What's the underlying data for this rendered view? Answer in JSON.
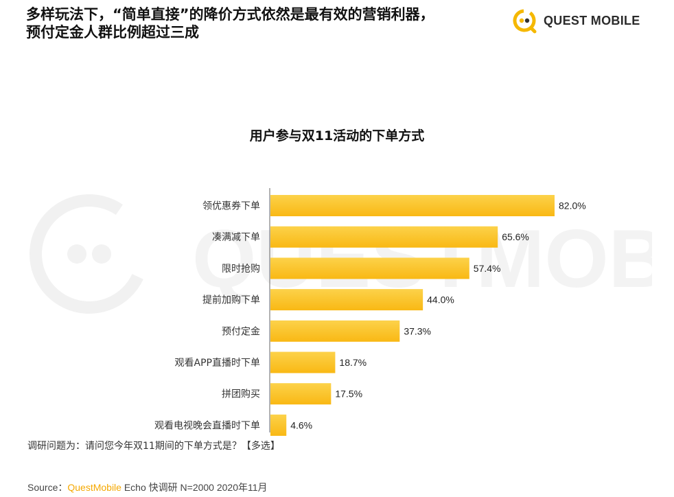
{
  "header": {
    "title_line1": "多样玩法下，“简单直接”的降价方式依然是最有效的营销利器，",
    "title_line2": "预付定金人群比例超过三成"
  },
  "logo": {
    "text": "QUEST MOBILE",
    "icon": "questmobile-logo-icon",
    "color": "#f5b800"
  },
  "watermark": {
    "text": "QUESTMOBILE"
  },
  "chart_data": {
    "type": "bar",
    "orientation": "horizontal",
    "title": "用户参与双11活动的下单方式",
    "categories": [
      "领优惠券下单",
      "凑满减下单",
      "限时抢购",
      "提前加购下单",
      "预付定金",
      "观看APP直播时下单",
      "拼团购买",
      "观看电视晚会直播时下单"
    ],
    "values": [
      82.0,
      65.6,
      57.4,
      44.0,
      37.3,
      18.7,
      17.5,
      4.6
    ],
    "value_labels": [
      "82.0%",
      "65.6%",
      "57.4%",
      "44.0%",
      "37.3%",
      "18.7%",
      "17.5%",
      "4.6%"
    ],
    "unit": "%",
    "xlim": [
      0,
      82.0
    ],
    "bar_color": "#f9b814",
    "bar_color_light": "#fcd24a",
    "grid": false,
    "legend": "none"
  },
  "footnote": "调研问题为：请问您今年双11期间的下单方式是？【多选】",
  "source": {
    "prefix": "Source：",
    "brand": "QuestMobile",
    "suffix": " Echo 快调研 N=2000 2020年11月",
    "brand_color": "#f5a800"
  }
}
